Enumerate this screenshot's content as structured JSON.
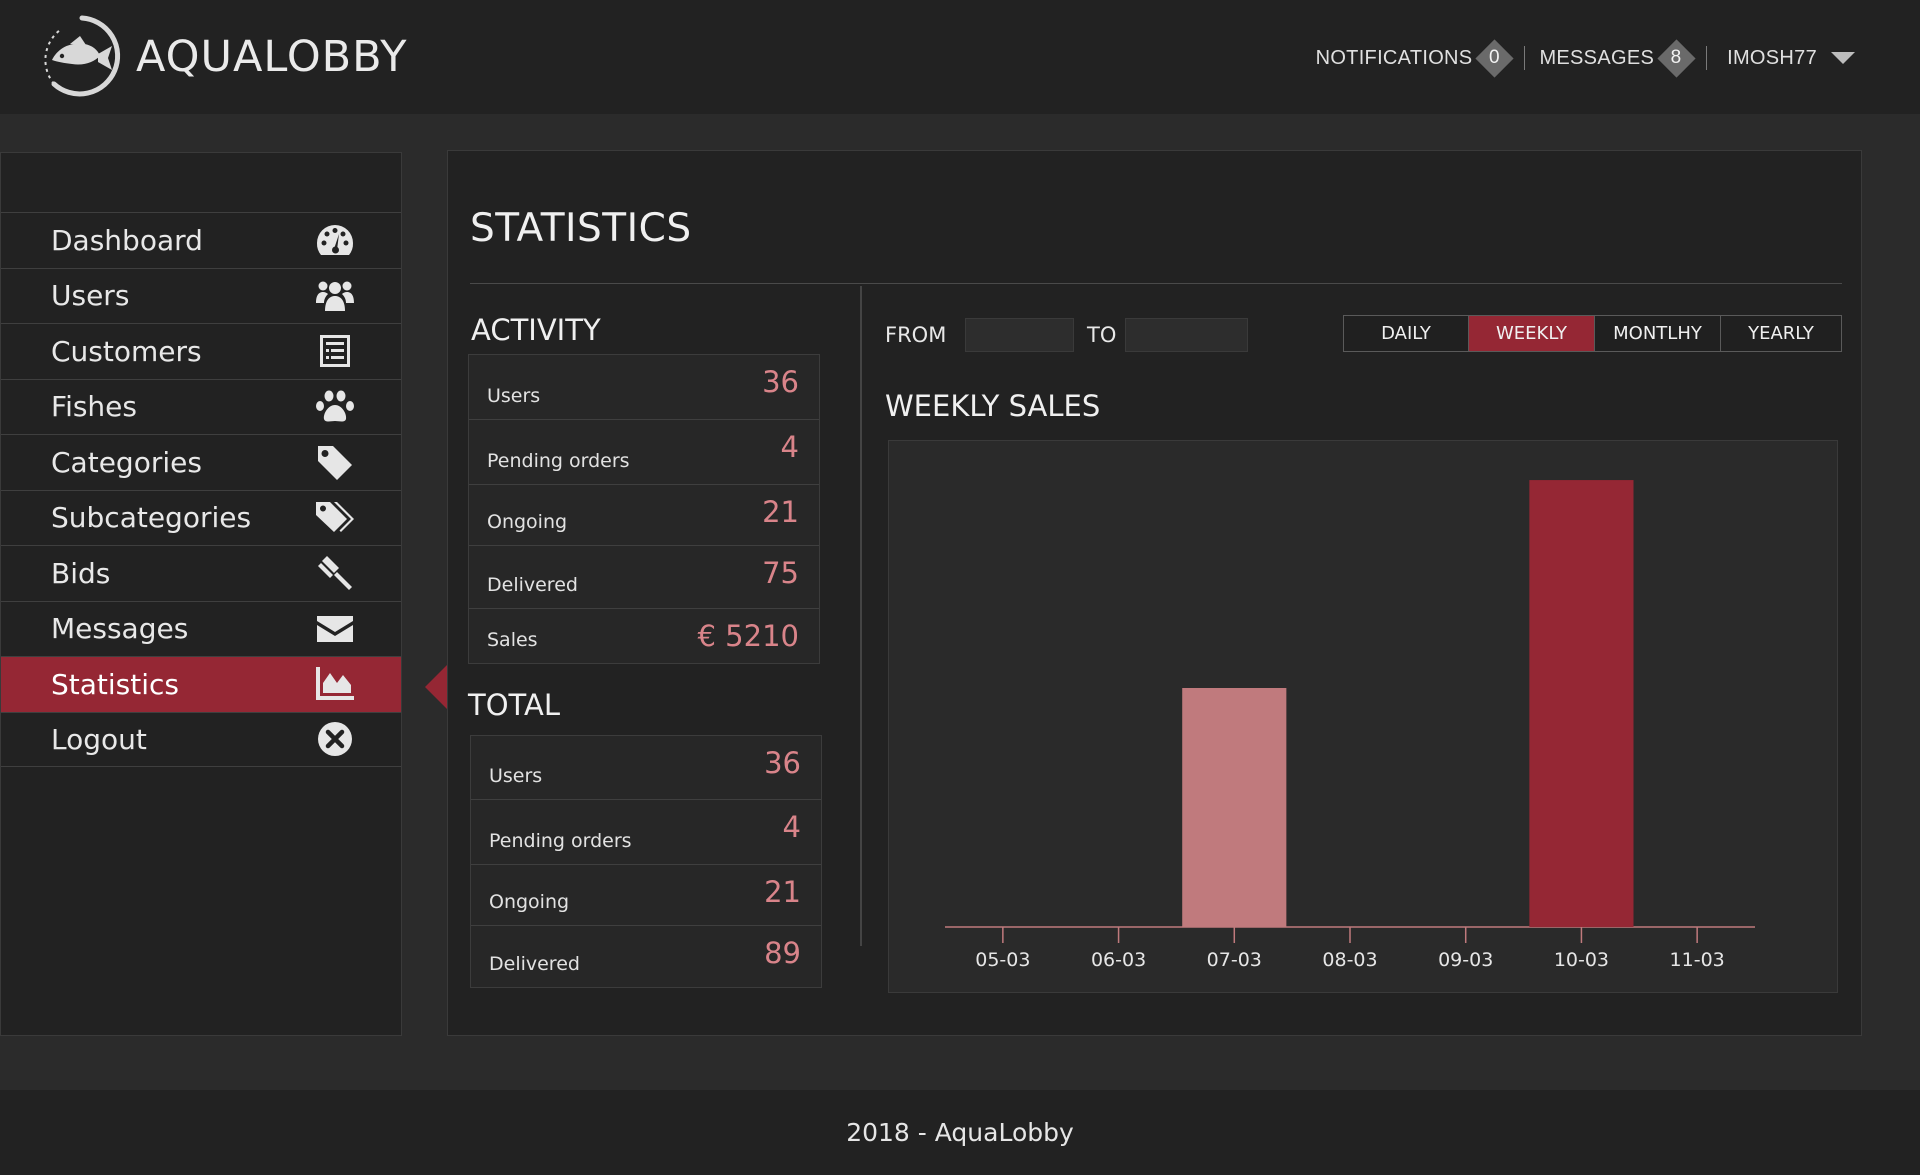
{
  "app": {
    "name": "AQUALOBBY"
  },
  "topnav": {
    "notifications_label": "NOTIFICATIONS",
    "notifications_count": "0",
    "messages_label": "MESSAGES",
    "messages_count": "8",
    "username": "IMOSH77"
  },
  "sidebar": {
    "items": [
      {
        "label": "Dashboard",
        "icon": "dashboard-gauge-icon",
        "active": false
      },
      {
        "label": "Users",
        "icon": "users-group-icon",
        "active": false
      },
      {
        "label": "Customers",
        "icon": "customers-list-icon",
        "active": false
      },
      {
        "label": "Fishes",
        "icon": "paw-icon",
        "active": false
      },
      {
        "label": "Categories",
        "icon": "tag-icon",
        "active": false
      },
      {
        "label": "Subcategories",
        "icon": "tags-icon",
        "active": false
      },
      {
        "label": "Bids",
        "icon": "gavel-icon",
        "active": false
      },
      {
        "label": "Messages",
        "icon": "envelope-icon",
        "active": false
      },
      {
        "label": "Statistics",
        "icon": "area-chart-icon",
        "active": true
      },
      {
        "label": "Logout",
        "icon": "close-circle-icon",
        "active": false
      }
    ]
  },
  "main": {
    "title": "STATISTICS",
    "activity": {
      "title": "ACTIVITY",
      "rows": [
        {
          "label": "Users",
          "value": "36"
        },
        {
          "label": "Pending orders",
          "value": "4"
        },
        {
          "label": "Ongoing",
          "value": "21"
        },
        {
          "label": "Delivered",
          "value": "75"
        },
        {
          "label": "Sales",
          "value": "€ 5210"
        }
      ]
    },
    "total": {
      "title": "TOTAL",
      "rows": [
        {
          "label": "Users",
          "value": "36"
        },
        {
          "label": "Pending orders",
          "value": "4"
        },
        {
          "label": "Ongoing",
          "value": "21"
        },
        {
          "label": "Delivered",
          "value": "89"
        }
      ]
    },
    "range": {
      "from_label": "FROM",
      "to_label": "TO",
      "from_value": "",
      "to_value": ""
    },
    "periods": [
      {
        "label": "DAILY",
        "active": false
      },
      {
        "label": "WEEKLY",
        "active": true
      },
      {
        "label": "MONTLHY",
        "active": false
      },
      {
        "label": "YEARLY",
        "active": false
      }
    ]
  },
  "colors": {
    "accent": "#952734",
    "bar_light": "#c07a7d",
    "bar_dark": "#952734",
    "value_text": "#d9848a"
  },
  "chart_data": {
    "type": "bar",
    "title": "WEEKLY SALES",
    "categories": [
      "05-03",
      "06-03",
      "07-03",
      "08-03",
      "09-03",
      "10-03",
      "11-03"
    ],
    "values": [
      0,
      0,
      1.0,
      0,
      0,
      1.87,
      0
    ],
    "bar_colors": [
      "#c07a7d",
      "#c07a7d",
      "#c07a7d",
      "#c07a7d",
      "#c07a7d",
      "#952734",
      "#c07a7d"
    ],
    "ylim": [
      0,
      2
    ],
    "grid": false,
    "legend": "none"
  },
  "footer": {
    "text": "2018 - AquaLobby"
  }
}
